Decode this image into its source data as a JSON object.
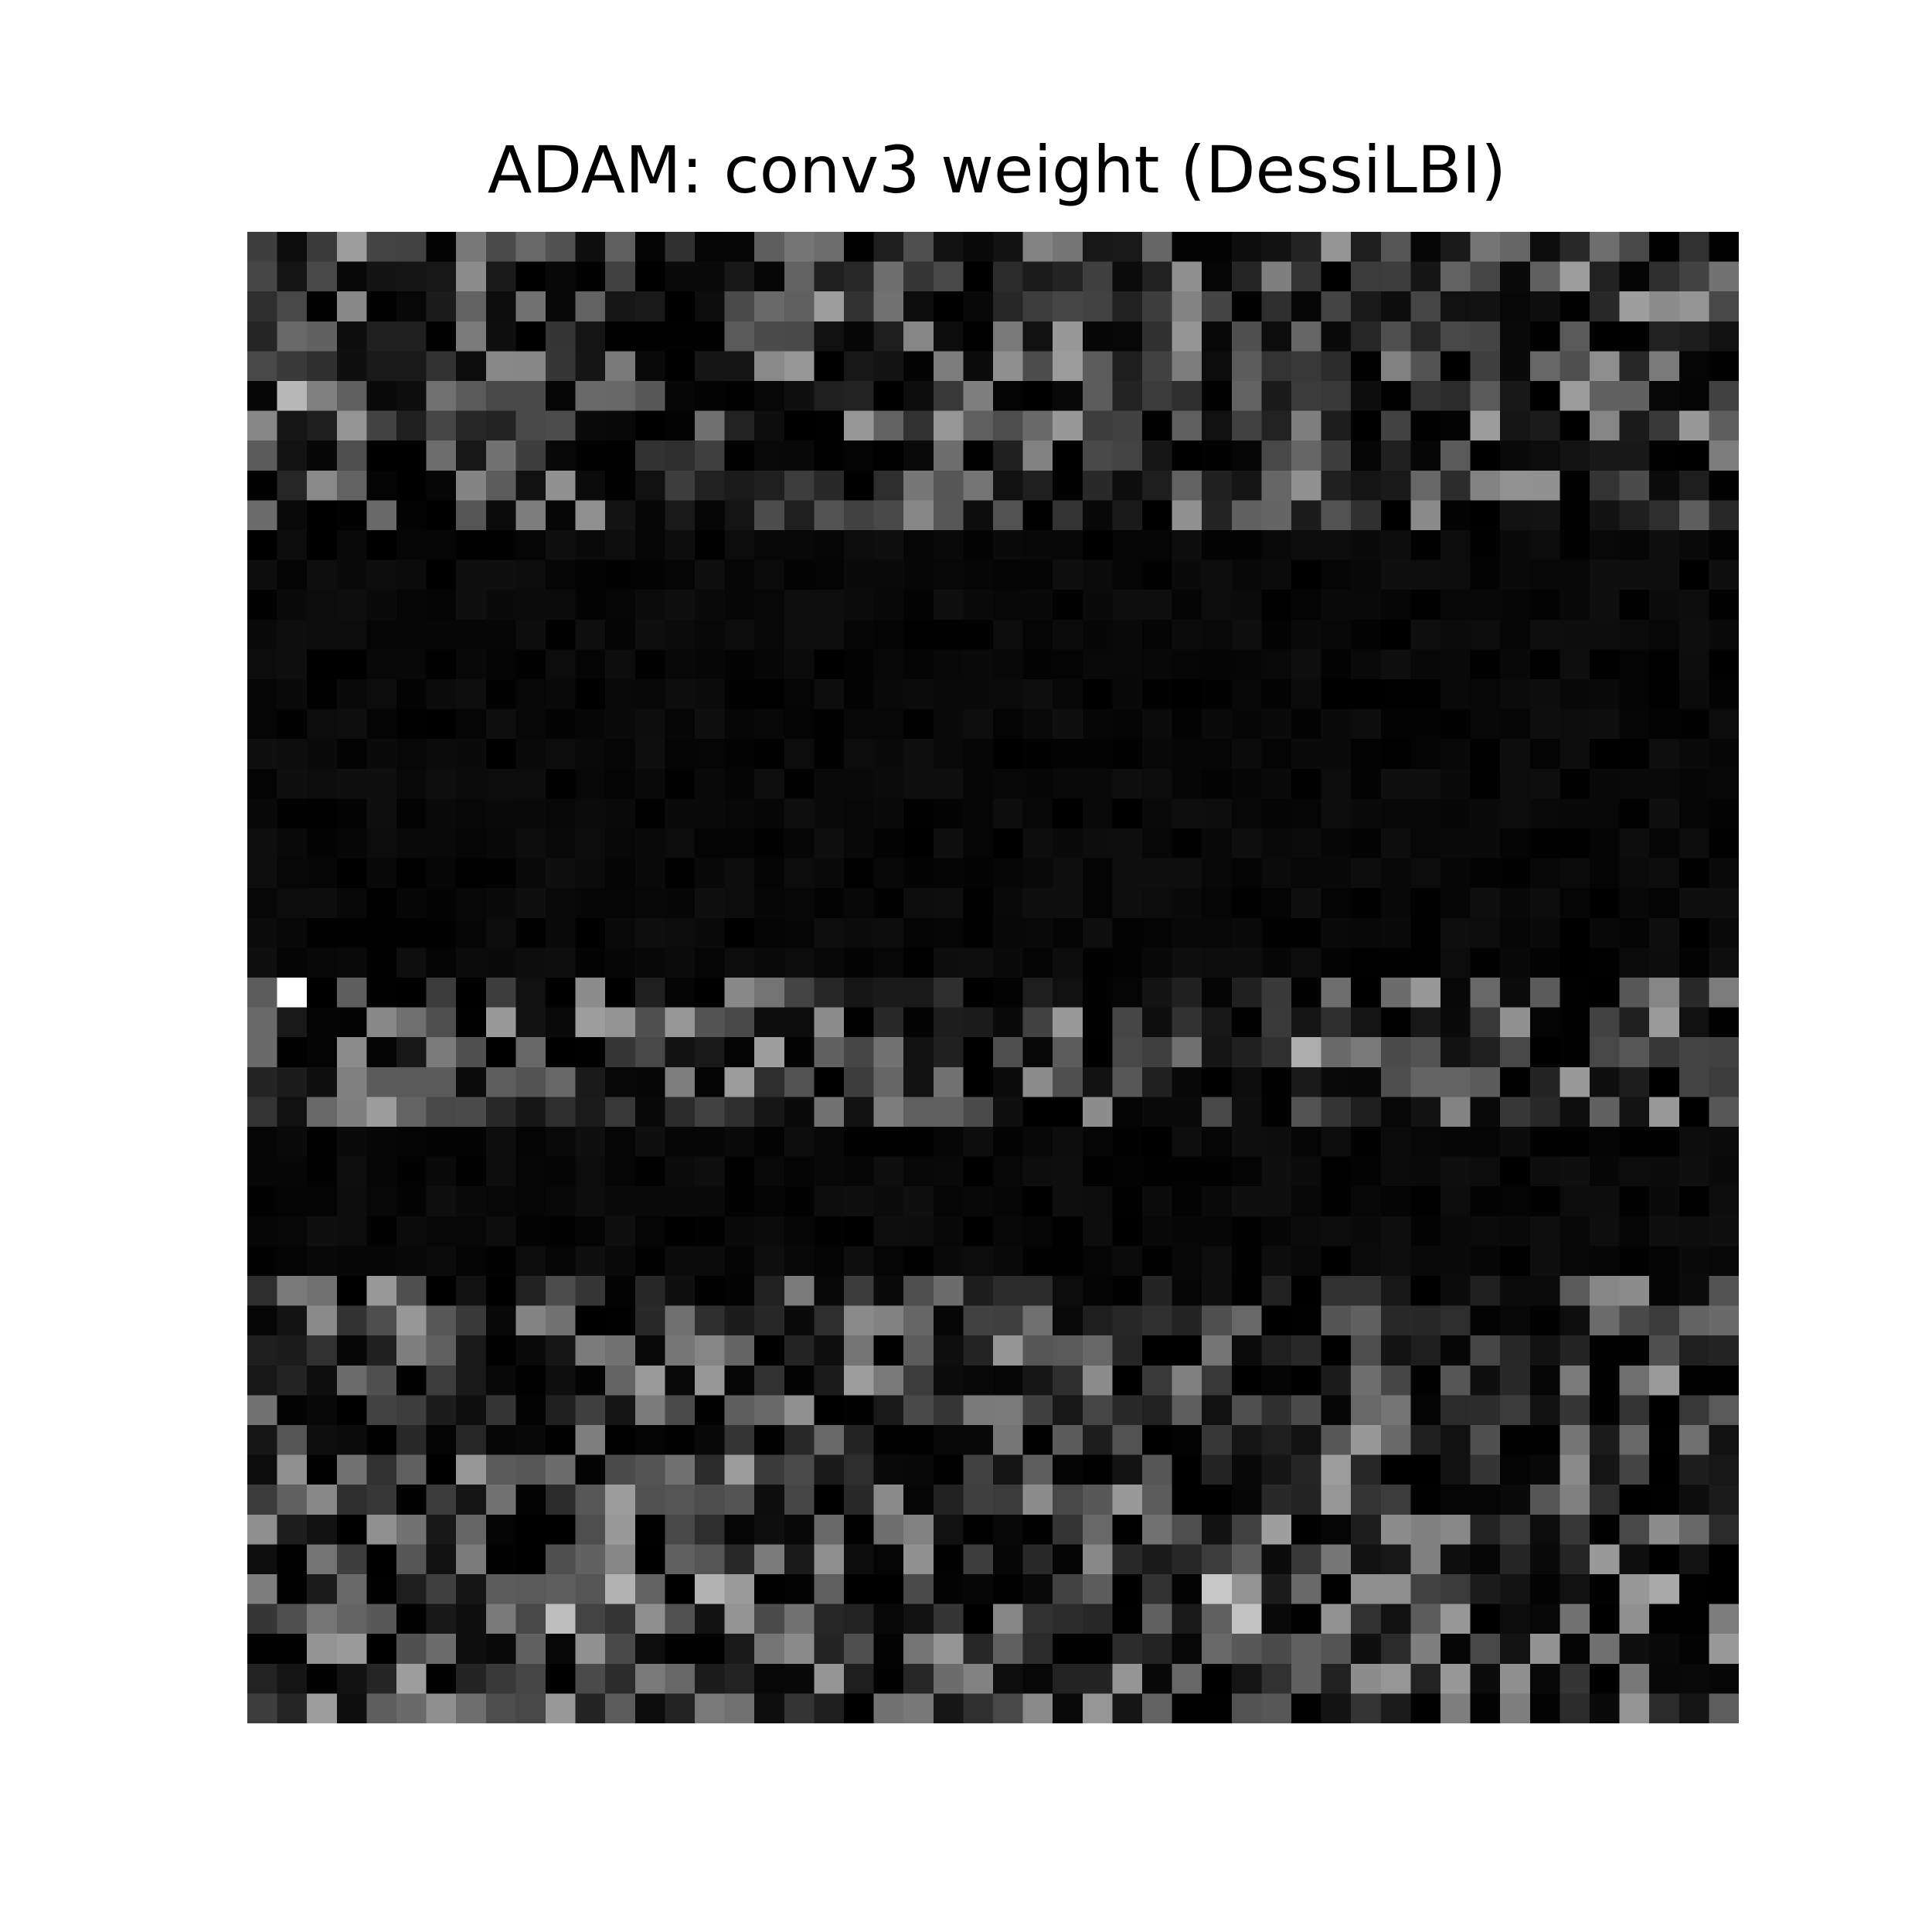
{
  "chart_data": {
    "type": "heatmap",
    "title": "ADAM: conv3 weight (DessiLBI)",
    "colormap": "gray",
    "rows": 50,
    "cols": 50,
    "row_bands": [
      {
        "rows": [
          0,
          9
        ],
        "level": 0.22,
        "texture": "noisy"
      },
      {
        "rows": [
          10,
          24
        ],
        "level": 0.02,
        "texture": "near-zero"
      },
      {
        "rows": [
          25,
          29
        ],
        "level": 0.22,
        "texture": "noisy"
      },
      {
        "rows": [
          30,
          34
        ],
        "level": 0.0,
        "texture": "near-zero"
      },
      {
        "rows": [
          35,
          49
        ],
        "level": 0.24,
        "texture": "noisy"
      }
    ],
    "highlights": [
      {
        "row": 25,
        "col": 1,
        "value": 1.0
      },
      {
        "row": 2,
        "col": 46,
        "value": 0.62
      },
      {
        "row": 2,
        "col": 47,
        "value": 0.55
      },
      {
        "row": 5,
        "col": 1,
        "value": 0.72
      },
      {
        "row": 27,
        "col": 35,
        "value": 0.68
      },
      {
        "row": 45,
        "col": 32,
        "value": 0.78
      },
      {
        "row": 46,
        "col": 33,
        "value": 0.76
      },
      {
        "row": 46,
        "col": 10,
        "value": 0.74
      },
      {
        "row": 45,
        "col": 12,
        "value": 0.7
      },
      {
        "row": 45,
        "col": 15,
        "value": 0.7
      },
      {
        "row": 26,
        "col": 27,
        "value": 0.6
      },
      {
        "row": 29,
        "col": 28,
        "value": 0.55
      },
      {
        "row": 44,
        "col": 45,
        "value": 0.6
      },
      {
        "row": 45,
        "col": 47,
        "value": 0.66
      }
    ]
  }
}
